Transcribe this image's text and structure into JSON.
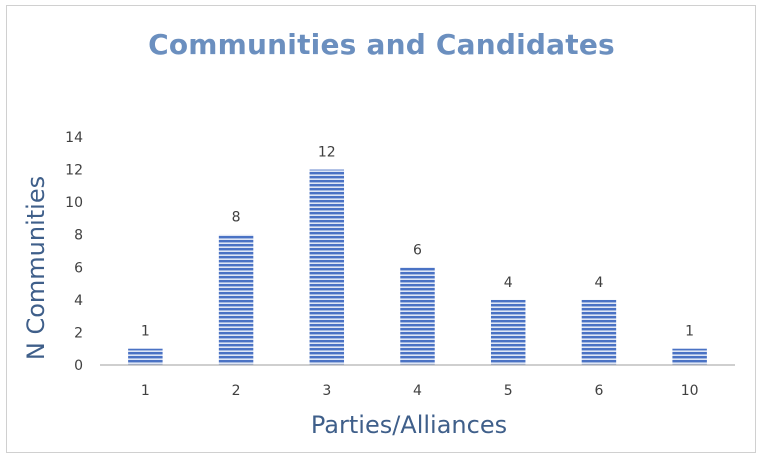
{
  "chart_data": {
    "type": "bar",
    "title": "Communities and Candidates",
    "xlabel": "Parties/Alliances",
    "ylabel": "N Communities",
    "categories": [
      "1",
      "2",
      "3",
      "4",
      "5",
      "6",
      "10"
    ],
    "values": [
      1,
      8,
      12,
      6,
      4,
      4,
      1
    ],
    "ylim": [
      0,
      14
    ],
    "yticks": [
      0,
      2,
      4,
      6,
      8,
      10,
      12,
      14
    ],
    "data_labels": true,
    "grid": false,
    "legend": "none",
    "colors": {
      "bar": "#4a72c4",
      "stripe": "#dfe6f5",
      "title": "#6b8fbf",
      "axis_title": "#3f5f8a",
      "text": "#404040",
      "axis_line": "#bfbfbf"
    }
  }
}
